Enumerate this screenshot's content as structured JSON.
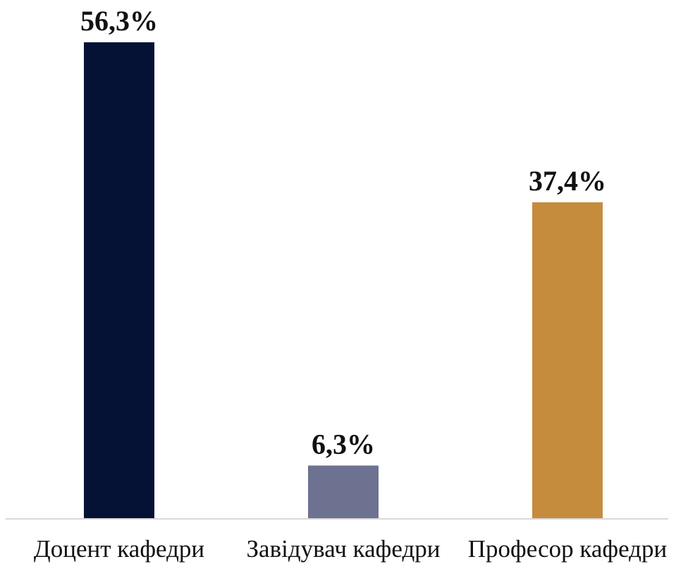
{
  "chart_data": {
    "type": "bar",
    "title": "",
    "xlabel": "",
    "ylabel": "",
    "categories": [
      "Доцент кафедри",
      "Завідувач кафедри",
      "Професор кафедри"
    ],
    "values": [
      56.3,
      6.3,
      37.4
    ],
    "value_labels": [
      "56,3%",
      "6,3%",
      "37,4%"
    ],
    "colors": [
      "#061235",
      "#6e7291",
      "#c58c3e"
    ],
    "ylim": [
      0,
      56.3
    ],
    "grid": false,
    "legend": "none"
  }
}
